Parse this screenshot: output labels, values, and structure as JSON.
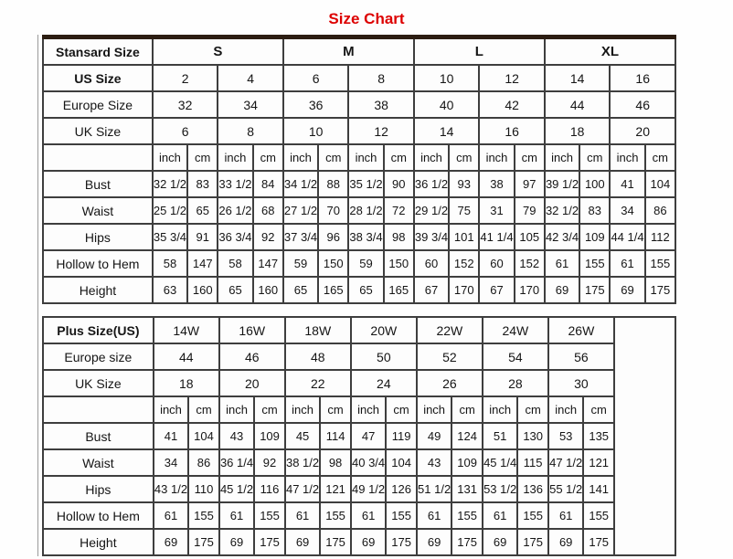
{
  "page_title": "Size Chart",
  "accent_color": "#dd0000",
  "standard_table": {
    "corner_label": "Stansard Size",
    "size_groups": [
      "S",
      "M",
      "L",
      "XL"
    ],
    "header_rows": [
      {
        "label": "US Size",
        "bold": true,
        "values": [
          "2",
          "4",
          "6",
          "8",
          "10",
          "12",
          "14",
          "16"
        ]
      },
      {
        "label": "Europe Size",
        "bold": false,
        "values": [
          "32",
          "34",
          "36",
          "38",
          "40",
          "42",
          "44",
          "46"
        ]
      },
      {
        "label": "UK Size",
        "bold": false,
        "values": [
          "6",
          "8",
          "10",
          "12",
          "14",
          "16",
          "18",
          "20"
        ]
      }
    ],
    "unit_row": [
      "inch",
      "cm",
      "inch",
      "cm",
      "inch",
      "cm",
      "inch",
      "cm",
      "inch",
      "cm",
      "inch",
      "cm",
      "inch",
      "cm",
      "inch",
      "cm"
    ],
    "measurement_rows": [
      {
        "label": "Bust",
        "values": [
          "32 1/2",
          "83",
          "33 1/2",
          "84",
          "34 1/2",
          "88",
          "35 1/2",
          "90",
          "36 1/2",
          "93",
          "38",
          "97",
          "39 1/2",
          "100",
          "41",
          "104"
        ]
      },
      {
        "label": "Waist",
        "values": [
          "25 1/2",
          "65",
          "26 1/2",
          "68",
          "27 1/2",
          "70",
          "28 1/2",
          "72",
          "29 1/2",
          "75",
          "31",
          "79",
          "32 1/2",
          "83",
          "34",
          "86"
        ]
      },
      {
        "label": "Hips",
        "values": [
          "35 3/4",
          "91",
          "36 3/4",
          "92",
          "37 3/4",
          "96",
          "38 3/4",
          "98",
          "39 3/4",
          "101",
          "41 1/4",
          "105",
          "42 3/4",
          "109",
          "44 1/4",
          "112"
        ]
      },
      {
        "label": "Hollow to Hem",
        "values": [
          "58",
          "147",
          "58",
          "147",
          "59",
          "150",
          "59",
          "150",
          "60",
          "152",
          "60",
          "152",
          "61",
          "155",
          "61",
          "155"
        ]
      },
      {
        "label": "Height",
        "values": [
          "63",
          "160",
          "65",
          "160",
          "65",
          "165",
          "65",
          "165",
          "67",
          "170",
          "67",
          "170",
          "69",
          "175",
          "69",
          "175"
        ]
      }
    ]
  },
  "plus_table": {
    "corner_label": "Plus Size(US)",
    "size_groups": [
      "14W",
      "16W",
      "18W",
      "20W",
      "22W",
      "24W",
      "26W"
    ],
    "header_rows": [
      {
        "label": "Europe size",
        "bold": false,
        "values": [
          "44",
          "46",
          "48",
          "50",
          "52",
          "54",
          "56"
        ]
      },
      {
        "label": "UK Size",
        "bold": false,
        "values": [
          "18",
          "20",
          "22",
          "24",
          "26",
          "28",
          "30"
        ]
      }
    ],
    "unit_row": [
      "inch",
      "cm",
      "inch",
      "cm",
      "inch",
      "cm",
      "inch",
      "cm",
      "inch",
      "cm",
      "inch",
      "cm",
      "inch",
      "cm"
    ],
    "measurement_rows": [
      {
        "label": "Bust",
        "values": [
          "41",
          "104",
          "43",
          "109",
          "45",
          "114",
          "47",
          "119",
          "49",
          "124",
          "51",
          "130",
          "53",
          "135"
        ]
      },
      {
        "label": "Waist",
        "values": [
          "34",
          "86",
          "36 1/4",
          "92",
          "38 1/2",
          "98",
          "40 3/4",
          "104",
          "43",
          "109",
          "45 1/4",
          "115",
          "47 1/2",
          "121"
        ]
      },
      {
        "label": "Hips",
        "values": [
          "43 1/2",
          "110",
          "45 1/2",
          "116",
          "47 1/2",
          "121",
          "49 1/2",
          "126",
          "51 1/2",
          "131",
          "53 1/2",
          "136",
          "55 1/2",
          "141"
        ]
      },
      {
        "label": "Hollow to Hem",
        "values": [
          "61",
          "155",
          "61",
          "155",
          "61",
          "155",
          "61",
          "155",
          "61",
          "155",
          "61",
          "155",
          "61",
          "155"
        ]
      },
      {
        "label": "Height",
        "values": [
          "69",
          "175",
          "69",
          "175",
          "69",
          "175",
          "69",
          "175",
          "69",
          "175",
          "69",
          "175",
          "69",
          "175"
        ]
      }
    ]
  }
}
